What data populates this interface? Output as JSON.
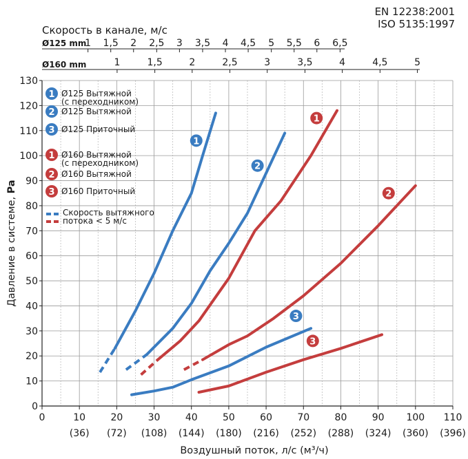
{
  "standards": [
    "EN 12238:2001",
    "ISO 5135:1997"
  ],
  "chart_data": {
    "type": "line",
    "xlabel": "Воздушный поток, л/с (м³/ч)",
    "ylabel_text": "Давление в системе, ",
    "ylabel_unit": "Pa",
    "xlim": [
      0,
      110
    ],
    "ylim": [
      0,
      130
    ],
    "x_ticks": [
      0,
      10,
      20,
      30,
      40,
      50,
      60,
      70,
      80,
      90,
      100,
      110
    ],
    "x_ticks_secondary": [
      "(36)",
      "(72)",
      "(108)",
      "(144)",
      "(180)",
      "(216)",
      "(252)",
      "(288)",
      "(324)",
      "(360)",
      "(396)"
    ],
    "y_ticks": [
      0,
      10,
      20,
      30,
      40,
      50,
      60,
      70,
      80,
      90,
      100,
      110,
      120,
      130
    ],
    "grid": true,
    "top_axes": {
      "title": "Скорость в канале, м/с",
      "d125": {
        "label": "Ø125 mm",
        "ticks": [
          "1",
          "1,5",
          "2",
          "2,5",
          "3",
          "3,5",
          "4",
          "4,5",
          "5",
          "5,5",
          "6",
          "6,5"
        ],
        "positions_lps": [
          12.3,
          18.4,
          24.5,
          30.7,
          36.8,
          43.0,
          49.1,
          55.2,
          61.4,
          67.5,
          73.6,
          79.8
        ]
      },
      "d160": {
        "label": "Ø160 mm",
        "ticks": [
          "1",
          "1,5",
          "2",
          "2,5",
          "3",
          "3,5",
          "4",
          "4,5",
          "5"
        ],
        "positions_lps": [
          20.1,
          30.2,
          40.2,
          50.3,
          60.3,
          70.4,
          80.4,
          90.5,
          100.5
        ]
      }
    },
    "colors": {
      "blue": "#3a7cc1",
      "red": "#c43d3d"
    },
    "series": [
      {
        "id": "1",
        "color": "#3a7cc1",
        "legend": [
          "Ø125 Вытяжной",
          "(с переходником)"
        ],
        "x": [
          15.5,
          19.5,
          25,
          30,
          35,
          40,
          43,
          46.5
        ],
        "y": [
          13.5,
          23,
          38,
          53,
          70,
          85,
          100,
          117
        ],
        "dashed_until": 19.5,
        "marker_at": [
          41.3,
          106
        ]
      },
      {
        "id": "2",
        "color": "#3a7cc1",
        "legend": [
          "Ø125 Вытяжной"
        ],
        "x": [
          22.5,
          28,
          35,
          40,
          45,
          50,
          55,
          60,
          65
        ],
        "y": [
          14.5,
          20.5,
          31,
          41,
          54,
          65,
          77,
          93,
          109
        ],
        "dashed_until": 28,
        "marker_at": [
          57.7,
          96
        ]
      },
      {
        "id": "3",
        "color": "#3a7cc1",
        "legend": [
          "Ø125 Приточный"
        ],
        "x": [
          24,
          30,
          35,
          40,
          50,
          60,
          72
        ],
        "y": [
          4.5,
          6,
          7.5,
          10.5,
          16,
          23.5,
          31
        ],
        "dashed_until": null,
        "marker_at": [
          68,
          36
        ]
      },
      {
        "id": "1",
        "color": "#c43d3d",
        "legend": [
          "Ø160 Вытяжной",
          "(с переходником)"
        ],
        "x": [
          26.5,
          31,
          37,
          42,
          50,
          57,
          64,
          72,
          79
        ],
        "y": [
          12.5,
          18.5,
          26,
          34,
          51,
          70,
          82,
          100,
          118
        ],
        "dashed_until": 31,
        "marker_at": [
          73.5,
          115
        ]
      },
      {
        "id": "2",
        "color": "#c43d3d",
        "legend": [
          "Ø160 Вытяжной"
        ],
        "x": [
          38,
          43,
          50,
          55,
          62,
          70,
          80,
          90,
          100
        ],
        "y": [
          14.5,
          18.5,
          24.5,
          28,
          35,
          44,
          57,
          72,
          88
        ],
        "dashed_until": 43,
        "marker_at": [
          92.8,
          85
        ]
      },
      {
        "id": "3",
        "color": "#c43d3d",
        "legend": [
          "Ø160 Приточный"
        ],
        "x": [
          42,
          50,
          60,
          70,
          80,
          91
        ],
        "y": [
          5.5,
          8,
          13.5,
          18.5,
          23,
          28.5
        ],
        "dashed_until": null,
        "marker_at": [
          72.5,
          26
        ]
      }
    ],
    "legend_dash": {
      "lines": [
        "Скорость вытяжного",
        "потока < 5 м/с"
      ]
    }
  }
}
